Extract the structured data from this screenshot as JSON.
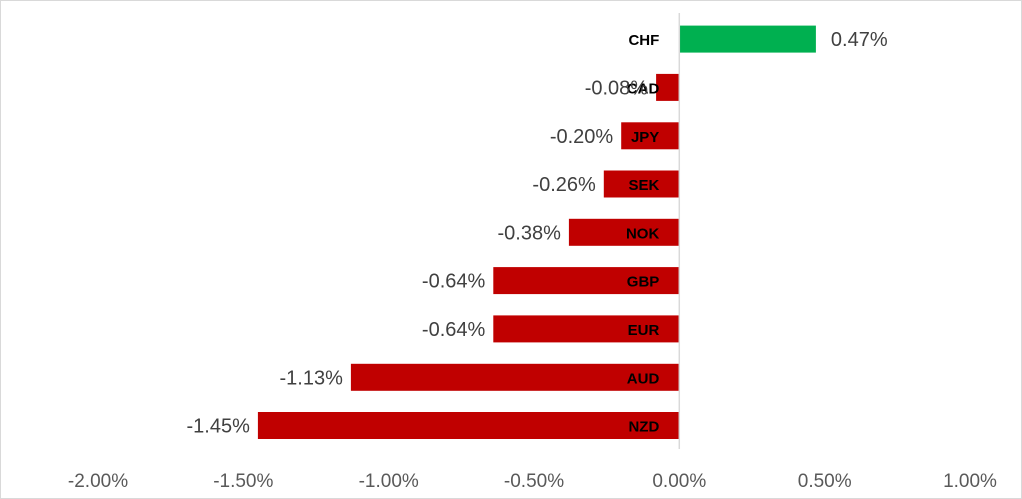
{
  "chart_data": {
    "type": "bar",
    "orientation": "horizontal",
    "categories": [
      "CHF",
      "CAD",
      "JPY",
      "SEK",
      "NOK",
      "GBP",
      "EUR",
      "AUD",
      "NZD"
    ],
    "values": [
      0.47,
      -0.08,
      -0.2,
      -0.26,
      -0.38,
      -0.64,
      -0.64,
      -1.13,
      -1.45
    ],
    "data_labels": [
      "0.47%",
      "-0.08%",
      "-0.20%",
      "-0.26%",
      "-0.38%",
      "-0.64%",
      "-0.64%",
      "-1.13%",
      "-1.45%"
    ],
    "x_ticks": [
      -2.0,
      -1.5,
      -1.0,
      -0.5,
      0.0,
      0.5,
      1.0
    ],
    "x_tick_labels": [
      "-2.00%",
      "-1.50%",
      "-1.00%",
      "-0.50%",
      "0.00%",
      "0.50%",
      "1.00%"
    ],
    "xlim": [
      -2.0,
      1.0
    ],
    "title": "",
    "xlabel": "",
    "ylabel": "",
    "grid": false,
    "legend": "none",
    "colors": {
      "positive": "#00b050",
      "negative": "#c00000",
      "zero_line": "#d9d9d9"
    }
  }
}
